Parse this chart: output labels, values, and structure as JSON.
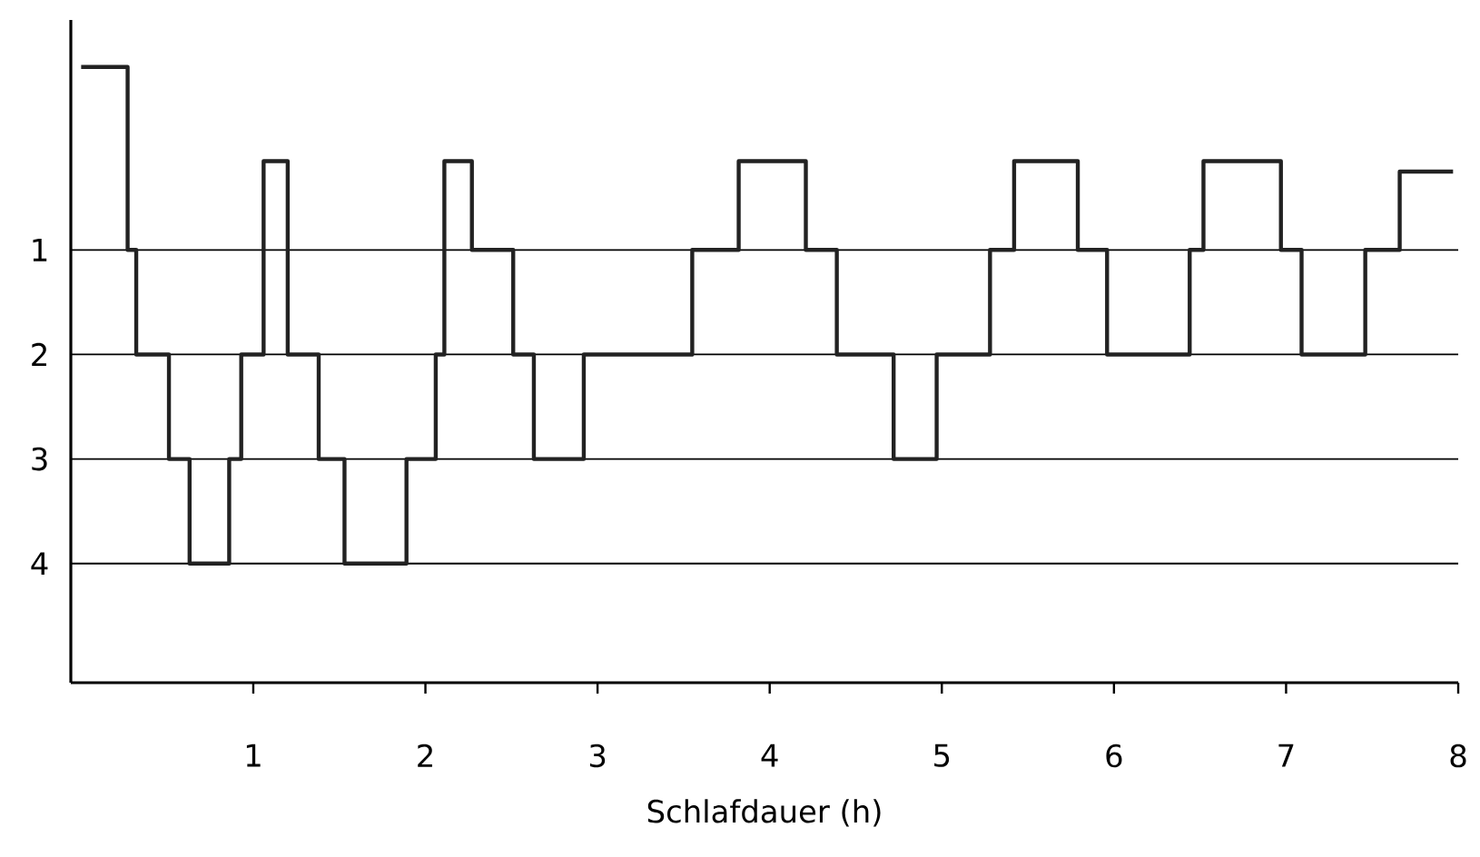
{
  "chart_data": {
    "type": "step",
    "xlabel": "Schlafdauer (h)",
    "x": [
      0,
      0.27,
      0.32,
      0.51,
      0.63,
      0.86,
      0.93,
      1.06,
      1.2,
      1.38,
      1.53,
      1.89,
      2.06,
      2.11,
      2.27,
      2.51,
      2.63,
      2.92,
      3.55,
      3.82,
      4.21,
      4.39,
      4.72,
      4.97,
      5.28,
      5.42,
      5.79,
      5.96,
      6.44,
      6.52,
      6.97,
      7.09,
      7.46,
      7.66,
      7.97
    ],
    "values": [
      -0.75,
      1,
      2,
      3,
      4,
      3,
      2,
      0.15,
      2,
      3,
      4,
      3,
      2,
      0.15,
      1,
      2,
      3,
      2,
      1,
      0.15,
      1,
      2,
      3,
      2,
      1,
      0.15,
      1,
      2,
      1,
      0.15,
      1,
      2,
      1,
      0.25,
      0.25
    ],
    "color": "#222222",
    "xlim": [
      -0.06,
      8
    ],
    "ylim": [
      5.14,
      -1.2
    ],
    "xticks": [
      1,
      2,
      3,
      4,
      5,
      6,
      7,
      8
    ],
    "yticks": [
      1,
      2,
      3,
      4
    ],
    "grid": "y",
    "marker": "none",
    "line_style": "solid"
  }
}
